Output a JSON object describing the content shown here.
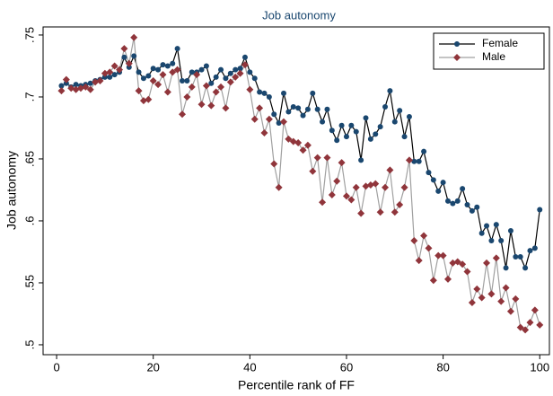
{
  "chart_data": {
    "type": "line",
    "title": "Job autonomy",
    "x_label": "Percentile rank of FF",
    "y_label": "Job autonomy",
    "xlim": [
      -2.8,
      102
    ],
    "xticks": [
      0,
      20,
      40,
      60,
      80,
      100
    ],
    "ylim": [
      0.492,
      0.7565
    ],
    "yticks": [
      {
        "value": 0.5,
        "label": ".5"
      },
      {
        "value": 0.55,
        "label": ".55"
      },
      {
        "value": 0.6,
        "label": ".6"
      },
      {
        "value": 0.65,
        "label": ".65"
      },
      {
        "value": 0.7,
        "label": ".7"
      },
      {
        "value": 0.75,
        "label": ".75"
      }
    ],
    "grid": false,
    "legend_position": "top-right",
    "x": [
      1,
      2,
      3,
      4,
      5,
      6,
      7,
      8,
      9,
      10,
      11,
      12,
      13,
      14,
      15,
      16,
      17,
      18,
      19,
      20,
      21,
      22,
      23,
      24,
      25,
      26,
      27,
      28,
      29,
      30,
      31,
      32,
      33,
      34,
      35,
      36,
      37,
      38,
      39,
      40,
      41,
      42,
      43,
      44,
      45,
      46,
      47,
      48,
      49,
      50,
      51,
      52,
      53,
      54,
      55,
      56,
      57,
      58,
      59,
      60,
      61,
      62,
      63,
      64,
      65,
      66,
      67,
      68,
      69,
      70,
      71,
      72,
      73,
      74,
      75,
      76,
      77,
      78,
      79,
      80,
      81,
      82,
      83,
      84,
      85,
      86,
      87,
      88,
      89,
      90,
      91,
      92,
      93,
      94,
      95,
      96,
      97,
      98,
      99,
      100
    ],
    "series": [
      {
        "name": "Female",
        "color": "#1a476f",
        "line_color": "#000000",
        "marker": "circle",
        "values": [
          0.709,
          0.711,
          0.708,
          0.71,
          0.709,
          0.71,
          0.711,
          0.713,
          0.714,
          0.716,
          0.716,
          0.718,
          0.72,
          0.732,
          0.724,
          0.733,
          0.72,
          0.715,
          0.717,
          0.723,
          0.722,
          0.726,
          0.725,
          0.727,
          0.739,
          0.713,
          0.713,
          0.72,
          0.72,
          0.722,
          0.725,
          0.711,
          0.716,
          0.722,
          0.715,
          0.719,
          0.722,
          0.723,
          0.732,
          0.72,
          0.715,
          0.704,
          0.703,
          0.7,
          0.686,
          0.679,
          0.703,
          0.688,
          0.692,
          0.691,
          0.685,
          0.69,
          0.703,
          0.69,
          0.68,
          0.69,
          0.673,
          0.665,
          0.677,
          0.668,
          0.677,
          0.672,
          0.649,
          0.683,
          0.666,
          0.67,
          0.676,
          0.692,
          0.705,
          0.68,
          0.689,
          0.668,
          0.684,
          0.648,
          0.648,
          0.656,
          0.639,
          0.633,
          0.624,
          0.631,
          0.616,
          0.614,
          0.616,
          0.626,
          0.613,
          0.608,
          0.611,
          0.59,
          0.596,
          0.584,
          0.597,
          0.584,
          0.562,
          0.592,
          0.571,
          0.571,
          0.562,
          0.576,
          0.578,
          0.609
        ]
      },
      {
        "name": "Male",
        "color": "#90353b",
        "line_color": "#a0a0a0",
        "marker": "diamond",
        "values": [
          0.705,
          0.714,
          0.707,
          0.706,
          0.707,
          0.708,
          0.706,
          0.712,
          0.713,
          0.719,
          0.72,
          0.725,
          0.722,
          0.739,
          0.727,
          0.748,
          0.705,
          0.697,
          0.698,
          0.713,
          0.71,
          0.718,
          0.704,
          0.72,
          0.722,
          0.686,
          0.7,
          0.708,
          0.718,
          0.694,
          0.709,
          0.693,
          0.704,
          0.708,
          0.691,
          0.712,
          0.716,
          0.719,
          0.726,
          0.706,
          0.682,
          0.691,
          0.671,
          0.682,
          0.646,
          0.627,
          0.68,
          0.666,
          0.664,
          0.663,
          0.657,
          0.661,
          0.64,
          0.651,
          0.615,
          0.651,
          0.621,
          0.632,
          0.647,
          0.62,
          0.617,
          0.627,
          0.606,
          0.628,
          0.629,
          0.63,
          0.607,
          0.627,
          0.641,
          0.607,
          0.613,
          0.627,
          0.649,
          0.584,
          0.568,
          0.588,
          0.578,
          0.552,
          0.572,
          0.572,
          0.553,
          0.566,
          0.567,
          0.565,
          0.559,
          0.534,
          0.545,
          0.538,
          0.566,
          0.541,
          0.57,
          0.535,
          0.546,
          0.527,
          0.537,
          0.514,
          0.512,
          0.518,
          0.528,
          0.516
        ]
      }
    ]
  }
}
